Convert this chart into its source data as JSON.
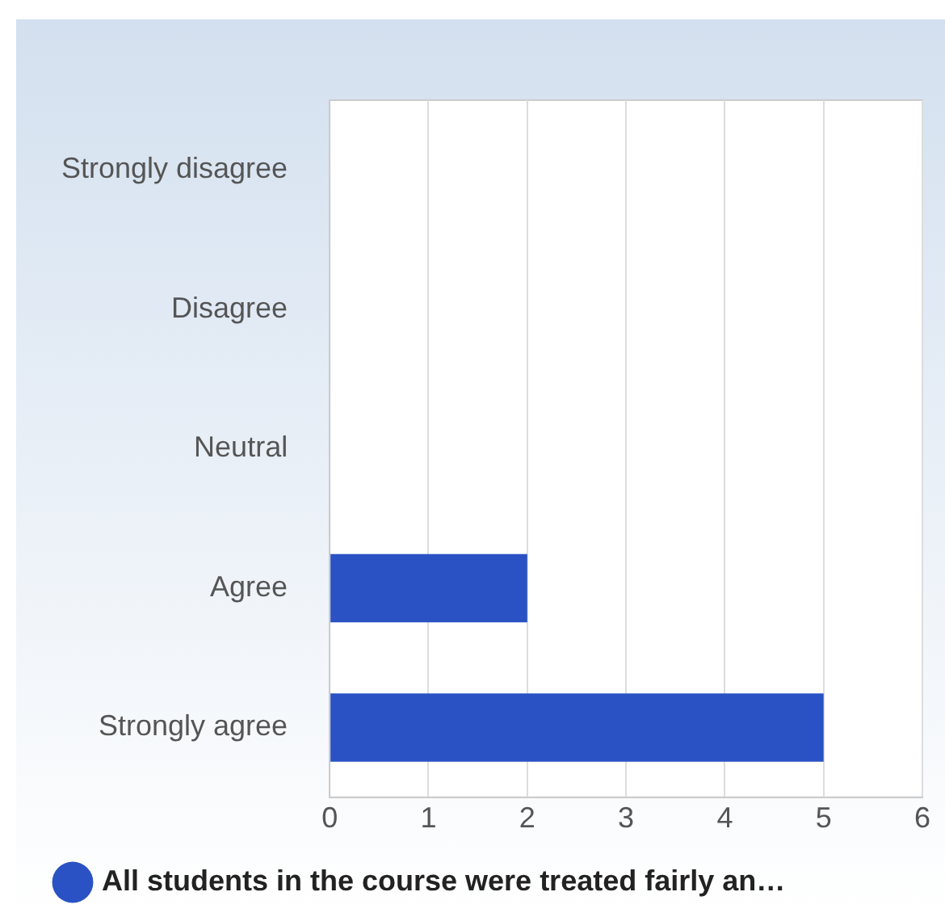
{
  "chart_data": {
    "type": "bar",
    "orientation": "horizontal",
    "categories": [
      "Strongly disagree",
      "Disagree",
      "Neutral",
      "Agree",
      "Strongly agree"
    ],
    "series": [
      {
        "name": "All students in the course were treated fairly an…",
        "color": "#2a52c4",
        "values": [
          0,
          0,
          0,
          2,
          5
        ]
      }
    ],
    "xlim": [
      0,
      6
    ],
    "xticks": [
      0,
      1,
      2,
      3,
      4,
      5,
      6
    ],
    "grid": "x",
    "legend": "bottom"
  }
}
